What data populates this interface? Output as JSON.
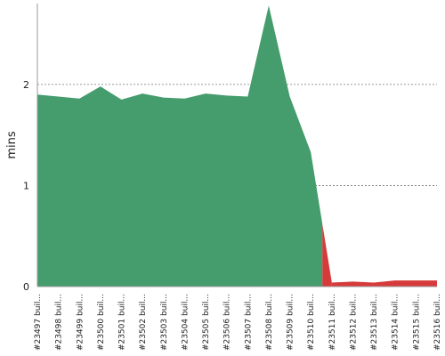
{
  "chart_data": {
    "type": "area",
    "ylabel": "mins",
    "ylim": [
      0,
      2.8
    ],
    "yticks": [
      0,
      1,
      2
    ],
    "grid": true,
    "categories": [
      "#23497 buil...",
      "#23498 buil...",
      "#23499 buil...",
      "#23500 buil...",
      "#23501 buil...",
      "#23502 buil...",
      "#23503 buil...",
      "#23504 buil...",
      "#23505 buil...",
      "#23506 buil...",
      "#23507 buil...",
      "#23508 buil...",
      "#23509 buil...",
      "#23510 buil...",
      "#23511 buil...",
      "#23512 buil...",
      "#23513 buil...",
      "#23514 buil...",
      "#23515 buil...",
      "#23516 buil..."
    ],
    "values": [
      1.9,
      1.88,
      1.86,
      1.98,
      1.85,
      1.91,
      1.87,
      1.86,
      1.91,
      1.89,
      1.88,
      2.78,
      1.88,
      1.33,
      0.04,
      0.05,
      0.04,
      0.06,
      0.06,
      0.06
    ],
    "status": [
      "success",
      "success",
      "success",
      "success",
      "success",
      "success",
      "success",
      "success",
      "success",
      "success",
      "success",
      "success",
      "success",
      "success",
      "failure",
      "failure",
      "failure",
      "failure",
      "failure",
      "failure"
    ],
    "colors": {
      "success": "#459c6d",
      "failure": "#d73a3a"
    }
  }
}
